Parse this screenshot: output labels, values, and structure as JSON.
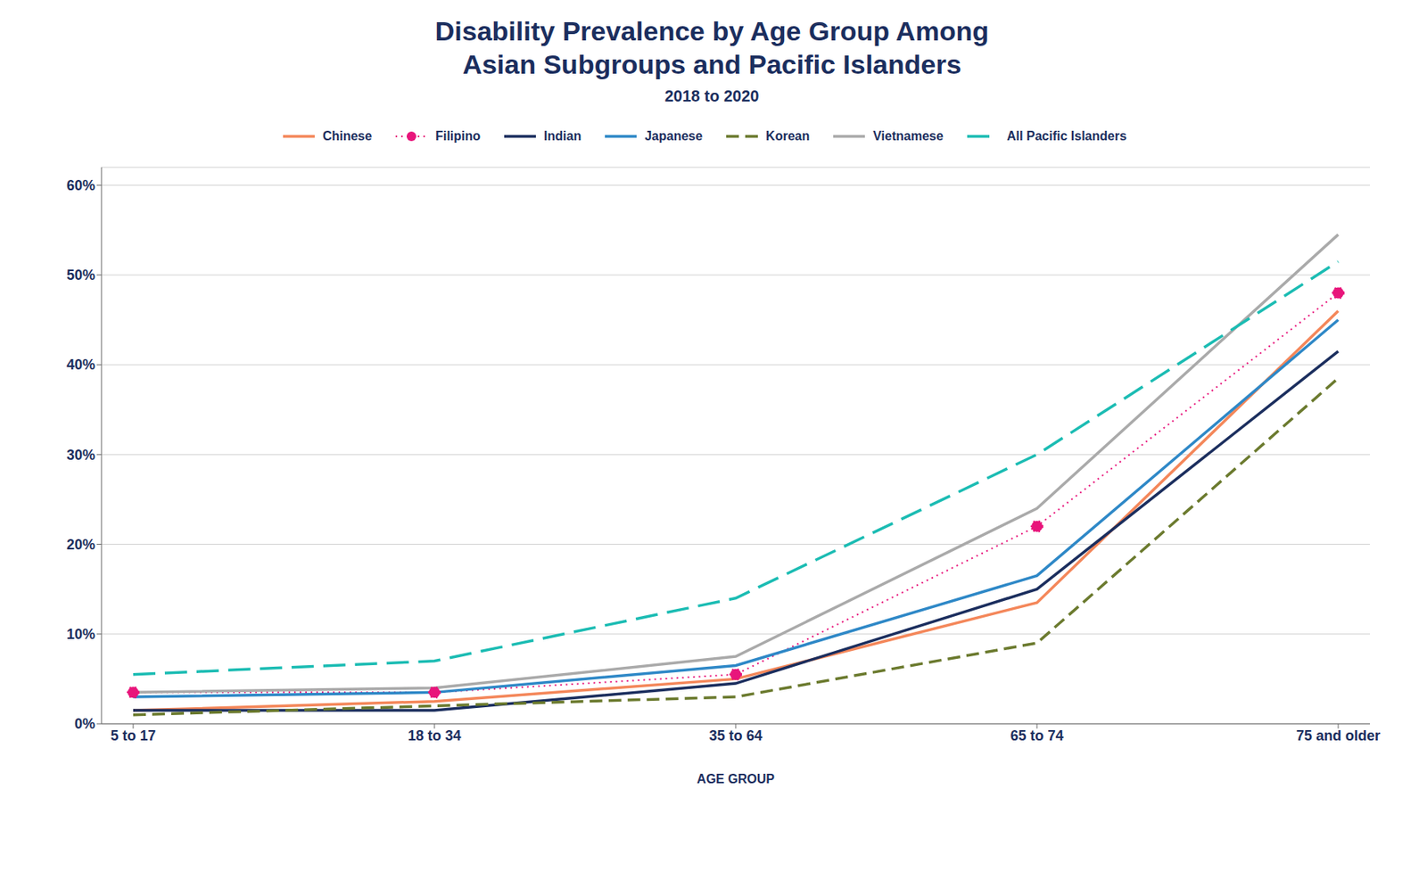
{
  "chart_data": {
    "type": "line",
    "title": "Disability Prevalence by Age Group Among\nAsian Subgroups and Pacific Islanders",
    "subtitle": "2018 to 2020",
    "xlabel": "AGE GROUP",
    "categories": [
      "5 to 17",
      "18 to 34",
      "35 to 64",
      "65 to 74",
      "75 and older"
    ],
    "series": [
      {
        "name": "Chinese",
        "color": "#F4875A",
        "line_style": "solid",
        "values": [
          1.5,
          2.5,
          5.0,
          13.5,
          46.0
        ]
      },
      {
        "name": "Filipino",
        "color": "#E8157B",
        "line_style": "dotted",
        "marker": "circle",
        "values": [
          3.5,
          3.5,
          5.5,
          22.0,
          48.0
        ]
      },
      {
        "name": "Indian",
        "color": "#1B2E5E",
        "line_style": "solid",
        "values": [
          1.5,
          1.5,
          4.5,
          15.0,
          41.5
        ]
      },
      {
        "name": "Japanese",
        "color": "#2E88C7",
        "line_style": "solid",
        "values": [
          3.0,
          3.5,
          6.5,
          16.5,
          45.0
        ]
      },
      {
        "name": "Korean",
        "color": "#6B7A2E",
        "line_style": "dashed",
        "values": [
          1.0,
          2.0,
          3.0,
          9.0,
          38.5
        ]
      },
      {
        "name": "Vietnamese",
        "color": "#AAAAAA",
        "line_style": "solid",
        "values": [
          3.5,
          4.0,
          7.5,
          24.0,
          54.5
        ]
      },
      {
        "name": "All Pacific Islanders",
        "color": "#1BBCB3",
        "line_style": "long_dashed",
        "values": [
          5.5,
          7.0,
          14.0,
          30.0,
          51.5
        ]
      }
    ],
    "ylim": [
      0,
      62
    ],
    "yticks": [
      {
        "value": 0,
        "label": "0%"
      },
      {
        "value": 10,
        "label": "10%"
      },
      {
        "value": 20,
        "label": "20%"
      },
      {
        "value": 30,
        "label": "30%"
      },
      {
        "value": 40,
        "label": "40%"
      },
      {
        "value": 50,
        "label": "50%"
      },
      {
        "value": 60,
        "label": "60%"
      }
    ],
    "grid": true,
    "legend": "top"
  }
}
